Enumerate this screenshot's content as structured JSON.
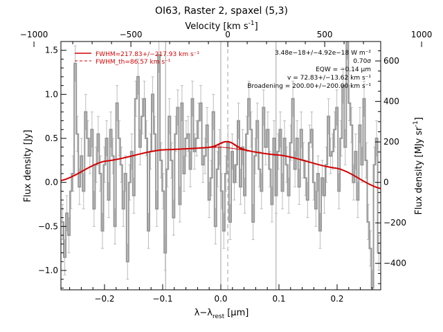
{
  "chart_data": {
    "type": "line",
    "title": "OI63, Raster 2, spaxel (5,3)",
    "xlabel_main": "λ−λ",
    "xlabel_sub": "rest",
    "xlabel_unit": "[μm]",
    "ylabel_left": "Flux density [Jy]",
    "ylabel_right": "Flux density [MJy sr",
    "ylabel_right_sup": "-1",
    "ylabel_right_close": "]",
    "top_axis_label": "Velocity [km s",
    "top_axis_label_sup": "-1",
    "top_axis_label_close": "]",
    "xlim": [
      -0.275,
      0.275
    ],
    "ylim": [
      -1.22,
      1.6
    ],
    "x_ticks": [
      -0.2,
      -0.1,
      0.0,
      0.1,
      0.2
    ],
    "x_tick_labels": [
      "−0.2",
      "−0.1",
      "0.0",
      "0.1",
      "0.2"
    ],
    "y_ticks": [
      -1.0,
      -0.5,
      0.0,
      0.5,
      1.0,
      1.5
    ],
    "y_tick_labels": [
      "−1.0",
      "−0.5",
      "0.0",
      "0.5",
      "1.0",
      "1.5"
    ],
    "top_ticks_kms": [
      -1000,
      -500,
      0,
      500,
      1000
    ],
    "top_tick_labels": [
      "−1000",
      "−500",
      "0",
      "500",
      "1000"
    ],
    "top_conv_kms_per_um": 3000,
    "top_offset_um": 0.012,
    "right_ticks": [
      -400,
      -200,
      0,
      200,
      400,
      600
    ],
    "right_tick_labels": [
      "−400",
      "−200",
      "0",
      "200",
      "400",
      "600"
    ],
    "right_conv_mjy_per_jy": 435,
    "legend": [
      {
        "label": "FWHM=217.83+/−217.93 km s⁻¹",
        "style": "solid"
      },
      {
        "label": "FWHM_th=86.57 km s⁻¹",
        "style": "dashed"
      }
    ],
    "annotations": [
      "3.48e−18+/−4.92e−18 W m⁻²",
      "0.70σ",
      "EQW = −0.14 μm",
      "v = 72.83+/−13.62 km s⁻¹",
      "Broadening = 200.00+/−200.00 km s⁻¹"
    ],
    "vlines_solid": [
      -0.095,
      0.0,
      0.095
    ],
    "vline_dashed": 0.012,
    "continuum": {
      "x": [
        -0.275,
        -0.2,
        -0.1,
        0.0,
        0.1,
        0.2,
        0.275
      ],
      "y": [
        0.02,
        0.24,
        0.37,
        0.4,
        0.31,
        0.16,
        -0.07
      ]
    },
    "line_peak": {
      "x": 0.012,
      "height": 0.07,
      "sigma": 0.013
    },
    "spectrum": {
      "x": [
        -0.272,
        -0.2684,
        -0.2648,
        -0.2612,
        -0.2576,
        -0.254,
        -0.2504,
        -0.2468,
        -0.2432,
        -0.2396,
        -0.236,
        -0.2324,
        -0.2288,
        -0.2252,
        -0.2216,
        -0.218,
        -0.2144,
        -0.2108,
        -0.2072,
        -0.2036,
        -0.2,
        -0.1964,
        -0.1928,
        -0.1892,
        -0.1856,
        -0.182,
        -0.1784,
        -0.1748,
        -0.1712,
        -0.1676,
        -0.164,
        -0.1604,
        -0.1568,
        -0.1532,
        -0.1496,
        -0.146,
        -0.1424,
        -0.1388,
        -0.1352,
        -0.1316,
        -0.128,
        -0.1244,
        -0.1208,
        -0.1172,
        -0.1136,
        -0.11,
        -0.1064,
        -0.1028,
        -0.0992,
        -0.0956,
        -0.092,
        -0.0884,
        -0.0848,
        -0.0812,
        -0.0776,
        -0.074,
        -0.0704,
        -0.0668,
        -0.0632,
        -0.0596,
        -0.056,
        -0.0524,
        -0.0488,
        -0.0452,
        -0.0416,
        -0.038,
        -0.0344,
        -0.0308,
        -0.0272,
        -0.0236,
        -0.02,
        -0.0164,
        -0.0128,
        -0.0092,
        -0.0056,
        -0.002,
        0.0016,
        0.0052,
        0.0088,
        0.0124,
        0.016,
        0.0196,
        0.0232,
        0.0268,
        0.0304,
        0.034,
        0.0376,
        0.0412,
        0.0448,
        0.0484,
        0.052,
        0.0556,
        0.0592,
        0.0628,
        0.0664,
        0.07,
        0.0736,
        0.0772,
        0.0808,
        0.0844,
        0.088,
        0.0916,
        0.0952,
        0.0988,
        0.1024,
        0.106,
        0.1096,
        0.1132,
        0.1168,
        0.1204,
        0.124,
        0.1276,
        0.1312,
        0.1348,
        0.1384,
        0.142,
        0.1456,
        0.1492,
        0.1528,
        0.1564,
        0.16,
        0.1636,
        0.1672,
        0.1708,
        0.1744,
        0.178,
        0.1816,
        0.1852,
        0.1888,
        0.1924,
        0.196,
        0.1996,
        0.2032,
        0.2068,
        0.2104,
        0.214,
        0.2176,
        0.2212,
        0.2248,
        0.2284,
        0.232,
        0.2356,
        0.2392,
        0.2428,
        0.2464,
        0.25,
        0.2536,
        0.2572,
        0.2608,
        0.2644,
        0.268,
        0.2716
      ],
      "y": [
        -0.45,
        -0.85,
        -0.35,
        -0.6,
        -0.1,
        0.1,
        1.35,
        0.55,
        -0.05,
        0.3,
        -0.1,
        0.8,
        0.5,
        0.3,
        0.6,
        -0.3,
        0.2,
        0.55,
        0.1,
        -0.55,
        0.2,
        0.5,
        -0.2,
        0.6,
        0.3,
        -0.5,
        0.9,
        0.5,
        0.2,
        -0.3,
        0.1,
        -0.9,
        0.0,
        0.35,
        -0.15,
        0.95,
        1.2,
        0.4,
        0.75,
        0.95,
        0.5,
        -0.55,
        0.35,
        1.0,
        0.55,
        -0.3,
        1.45,
        0.25,
        -0.1,
        -0.8,
        0.15,
        0.75,
        0.25,
        -0.4,
        0.55,
        0.85,
        -0.25,
        0.9,
        0.1,
        0.5,
        0.55,
        0.15,
        0.95,
        0.35,
        0.5,
        0.7,
        0.9,
        0.2,
        0.3,
        0.65,
        -0.2,
        0.05,
        0.8,
        -0.5,
        0.15,
        0.4,
        -0.1,
        -0.55,
        0.1,
        0.45,
        -0.45,
        0.35,
        0.0,
        0.2,
        0.7,
        -0.05,
        0.4,
        -0.15,
        0.55,
        0.95,
        0.6,
        -0.45,
        0.3,
        0.7,
        0.15,
        -0.1,
        0.85,
        0.4,
        0.6,
        0.15,
        -0.25,
        0.5,
        -0.15,
        0.35,
        0.6,
        -0.1,
        0.5,
        0.2,
        -0.15,
        0.45,
        0.95,
        0.15,
        0.5,
        -0.05,
        0.6,
        0.25,
        0.05,
        -0.2,
        0.45,
        0.6,
        0.0,
        -0.3,
        0.1,
        -0.55,
        0.05,
        -0.15,
        0.2,
        0.75,
        0.3,
        0.35,
        0.6,
        0.85,
        -0.1,
        0.5,
        1.1,
        0.4,
        1.6,
        0.9,
        0.65,
        0.0,
        0.35,
        -0.2,
        0.65,
        0.2,
        0.95,
        0.25,
        -0.45,
        -0.75,
        -1.2,
        0.2,
        0.5,
        -0.8
      ],
      "err": 0.2,
      "bin_width": 0.0036
    },
    "colors": {
      "spectrum": "#999999",
      "errorbar": "#bbbbbb",
      "fit": "#d40000",
      "vline": "#a0a0a0",
      "axis": "#000000"
    }
  }
}
